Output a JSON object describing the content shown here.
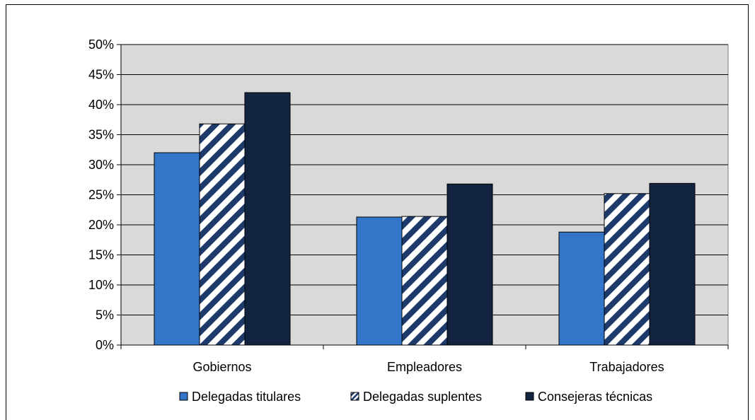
{
  "chart_data": {
    "type": "bar",
    "categories": [
      "Gobiernos",
      "Empleadores",
      "Trabajadores"
    ],
    "series": [
      {
        "name": "Delegadas titulares",
        "values": [
          32,
          21.3,
          18.8
        ],
        "color": "#3375c9",
        "pattern": "solid"
      },
      {
        "name": "Delegadas suplentes",
        "values": [
          36.8,
          21.4,
          25.2
        ],
        "color": "#1d3a6b",
        "pattern": "diagonal-stripes"
      },
      {
        "name": "Consejeras técnicas",
        "values": [
          42,
          26.8,
          26.9
        ],
        "color": "#12243f",
        "pattern": "solid"
      }
    ],
    "ylim": [
      0,
      50
    ],
    "yticks": [
      0,
      5,
      10,
      15,
      20,
      25,
      30,
      35,
      40,
      45,
      50
    ],
    "ytick_labels": [
      "0%",
      "5%",
      "10%",
      "15%",
      "20%",
      "25%",
      "30%",
      "35%",
      "40%",
      "45%",
      "50%"
    ],
    "grid": true,
    "plot_background": "#d9d9d9",
    "legend_position": "bottom",
    "title": "",
    "xlabel": "",
    "ylabel": ""
  }
}
